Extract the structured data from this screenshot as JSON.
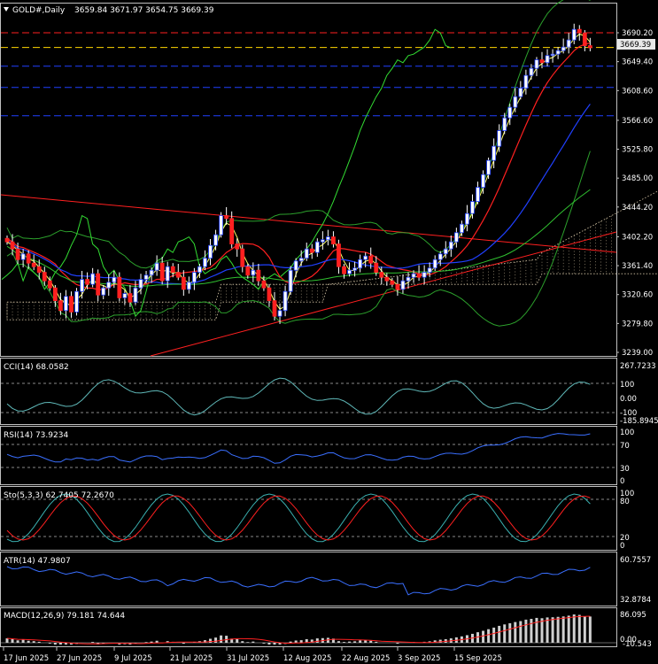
{
  "main": {
    "symbol": "GOLD#,Daily",
    "ohlc": "3659.84 3671.97 3654.75 3669.39",
    "current_price_label": "3669.39",
    "price_ticks": [
      "3690.20",
      "3649.40",
      "3608.60",
      "3566.60",
      "3525.80",
      "3485.00",
      "3444.20",
      "3402.20",
      "3361.40",
      "3320.60",
      "3279.80",
      "3239.00"
    ],
    "date_ticks": [
      "17 Jun 2025",
      "27 Jun 2025",
      "9 Jul 2025",
      "21 Jul 2025",
      "31 Jul 2025",
      "12 Aug 2025",
      "22 Aug 2025",
      "3 Sep 2025",
      "15 Sep 2025"
    ],
    "h_levels": [
      {
        "price": 3690.2,
        "color": "#ff2020"
      },
      {
        "price": 3669.39,
        "color": "#ffd700"
      },
      {
        "price": 3643,
        "color": "#2040ff"
      },
      {
        "price": 3613,
        "color": "#2040ff"
      },
      {
        "price": 3573,
        "color": "#2040ff"
      }
    ],
    "colors": {
      "up": "#ffffff",
      "down": "#ff2020",
      "bull_body": "#2040ff"
    }
  },
  "cci": {
    "title": "CCI(14) 68.0582",
    "ticks": [
      "267.7233",
      "100",
      "0.00",
      "-100",
      "-185.8945"
    ]
  },
  "rsi": {
    "title": "RSI(14) 73.9234",
    "ticks": [
      "100",
      "70",
      "30",
      "0"
    ]
  },
  "sto": {
    "title": "Sto(5,3,3) 62.7405 72.2670",
    "ticks": [
      "100",
      "80",
      "20",
      "0"
    ]
  },
  "atr": {
    "title": "ATR(14) 47.9807",
    "ticks": [
      "60.7557",
      "32.8784"
    ]
  },
  "macd": {
    "title": "MACD(12,26,9) 79.181 74.644",
    "ticks": [
      "86.095",
      "0.00",
      "-10.543"
    ]
  }
}
